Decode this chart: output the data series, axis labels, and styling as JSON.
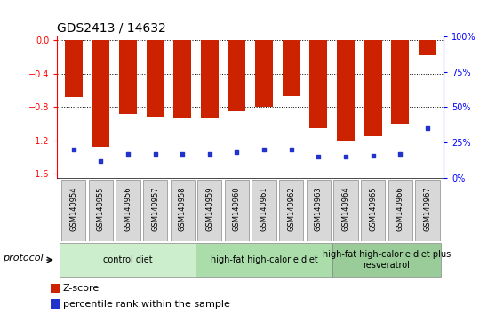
{
  "title": "GDS2413 / 14632",
  "samples": [
    "GSM140954",
    "GSM140955",
    "GSM140956",
    "GSM140957",
    "GSM140958",
    "GSM140959",
    "GSM140960",
    "GSM140961",
    "GSM140962",
    "GSM140963",
    "GSM140964",
    "GSM140965",
    "GSM140966",
    "GSM140967"
  ],
  "zscore": [
    -0.68,
    -1.28,
    -0.88,
    -0.91,
    -0.93,
    -0.93,
    -0.85,
    -0.8,
    -0.67,
    -1.05,
    -1.2,
    -1.15,
    -1.0,
    -0.18
  ],
  "percentile": [
    20,
    12,
    17,
    17,
    17,
    17,
    18,
    20,
    20,
    15,
    15,
    16,
    17,
    35
  ],
  "ylim_left": [
    -1.65,
    0.05
  ],
  "ylim_right": [
    0,
    100
  ],
  "yticks_left": [
    0.0,
    -0.4,
    -0.8,
    -1.2,
    -1.6
  ],
  "yticks_right": [
    0,
    25,
    50,
    75,
    100
  ],
  "bar_color": "#cc2200",
  "dot_color": "#2233cc",
  "groups": [
    {
      "label": "control diet",
      "start": 0,
      "end": 4,
      "color": "#cceecc"
    },
    {
      "label": "high-fat high-calorie diet",
      "start": 5,
      "end": 9,
      "color": "#aaddaa"
    },
    {
      "label": "high-fat high-calorie diet plus\nresveratrol",
      "start": 10,
      "end": 13,
      "color": "#99cc99"
    }
  ],
  "protocol_label": "protocol",
  "legend_zscore": "Z-score",
  "legend_pct": "percentile rank within the sample",
  "title_fontsize": 10,
  "tick_fontsize": 7,
  "label_fontsize": 6,
  "group_fontsize": 7
}
